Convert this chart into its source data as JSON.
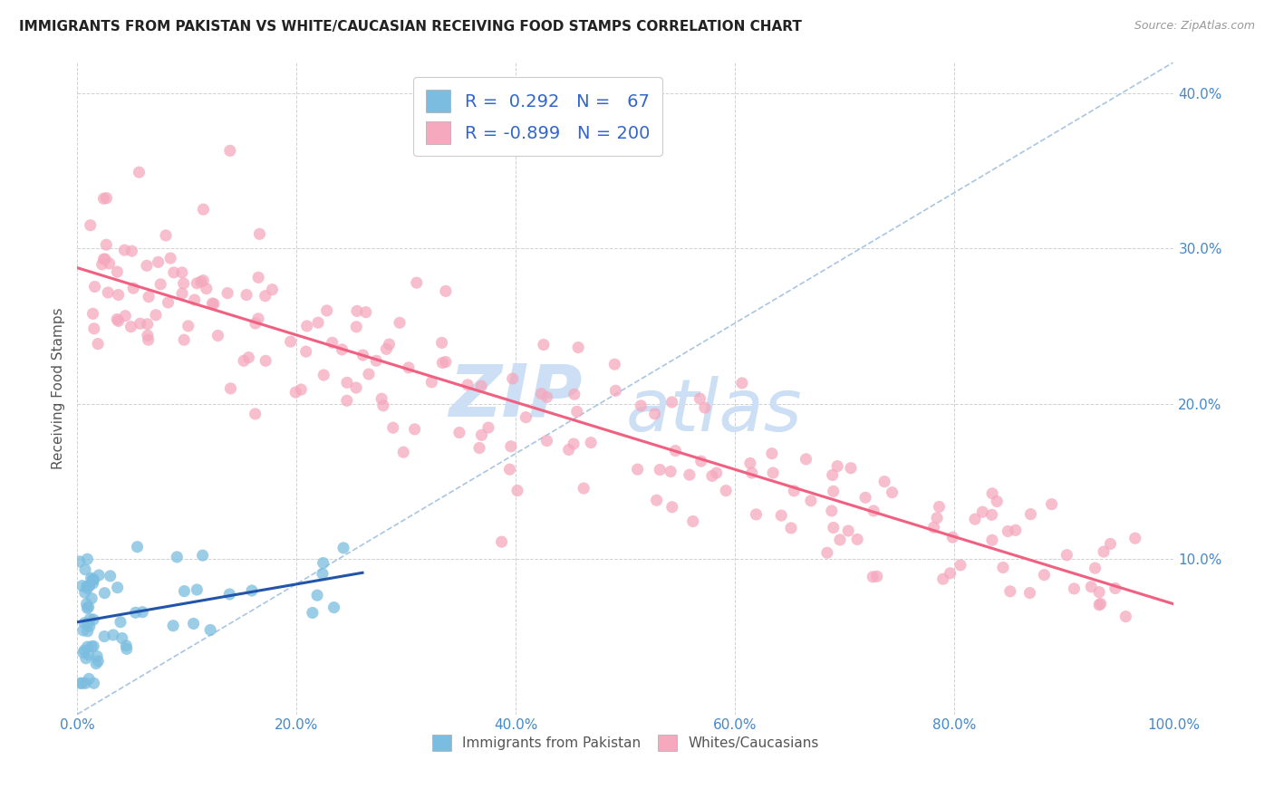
{
  "title": "IMMIGRANTS FROM PAKISTAN VS WHITE/CAUCASIAN RECEIVING FOOD STAMPS CORRELATION CHART",
  "source": "Source: ZipAtlas.com",
  "ylabel": "Receiving Food Stamps",
  "xlim": [
    0,
    1.0
  ],
  "ylim": [
    0,
    0.42
  ],
  "xticks": [
    0.0,
    0.2,
    0.4,
    0.6,
    0.8,
    1.0
  ],
  "xticklabels": [
    "0.0%",
    "20.0%",
    "40.0%",
    "60.0%",
    "80.0%",
    "100.0%"
  ],
  "yticks": [
    0.0,
    0.1,
    0.2,
    0.3,
    0.4
  ],
  "yright_labels": [
    "",
    "10.0%",
    "20.0%",
    "30.0%",
    "40.0%"
  ],
  "blue_R": "0.292",
  "blue_N": "67",
  "pink_R": "-0.899",
  "pink_N": "200",
  "blue_dot_color": "#7bbde0",
  "pink_dot_color": "#f5a8be",
  "blue_line_color": "#2255aa",
  "pink_line_color": "#f06080",
  "dash_line_color": "#99bbdd",
  "legend_label_blue": "Immigrants from Pakistan",
  "legend_label_pink": "Whites/Caucasians",
  "watermark_color": "#ccdff5"
}
